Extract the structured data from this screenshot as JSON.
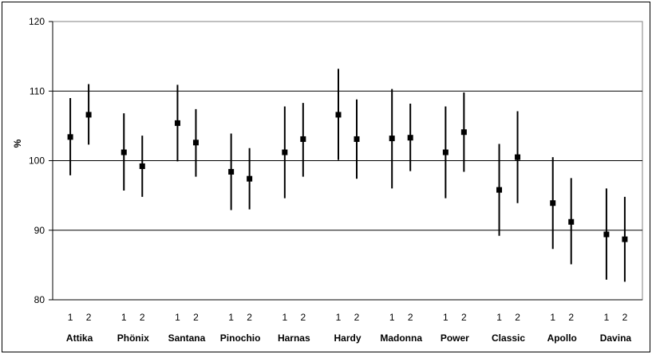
{
  "chart_data": {
    "type": "scatter",
    "title": "",
    "xlabel": "",
    "ylabel": "%",
    "ylim": [
      80,
      120
    ],
    "yticks": [
      80,
      90,
      100,
      110,
      120
    ],
    "grid": "horizontal major",
    "legend": "none",
    "marker_color": "#000000",
    "categories": [
      "Attika",
      "Phönix",
      "Santana",
      "Pinochio",
      "Harnas",
      "Hardy",
      "Madonna",
      "Power",
      "Classic",
      "Apollo",
      "Davina"
    ],
    "sub_labels": [
      "1",
      "2"
    ],
    "series": [
      {
        "values": [
          103.4,
          101.2,
          105.4,
          98.4,
          101.2,
          106.6,
          103.2,
          101.2,
          95.8,
          93.9,
          89.4
        ],
        "low": [
          97.9,
          95.7,
          99.9,
          92.9,
          94.6,
          100.1,
          96.0,
          94.6,
          89.2,
          87.3,
          82.9
        ],
        "high": [
          109.0,
          106.8,
          110.9,
          103.9,
          107.8,
          113.2,
          110.3,
          107.8,
          102.4,
          100.5,
          96.0
        ]
      },
      {
        "values": [
          106.6,
          99.2,
          102.6,
          97.4,
          103.1,
          103.1,
          103.3,
          104.1,
          100.5,
          91.2,
          88.7
        ],
        "low": [
          102.3,
          94.8,
          97.7,
          93.0,
          97.7,
          97.4,
          98.5,
          98.4,
          93.9,
          85.1,
          82.6
        ],
        "high": [
          111.0,
          103.6,
          107.4,
          101.8,
          108.3,
          108.8,
          108.2,
          109.8,
          107.1,
          97.5,
          94.8
        ]
      }
    ]
  }
}
